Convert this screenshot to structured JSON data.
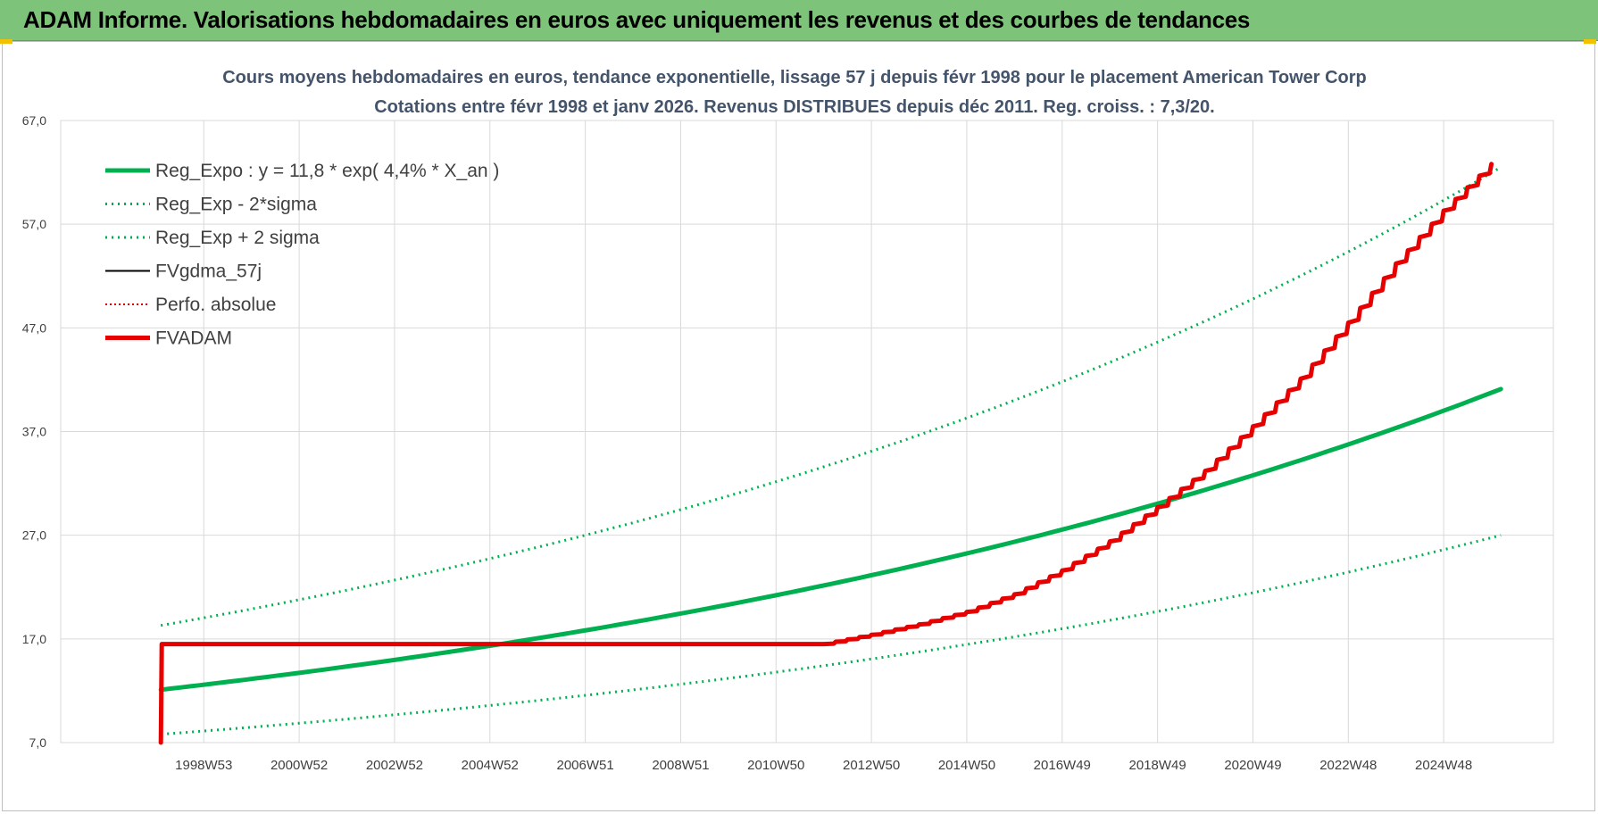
{
  "header": {
    "title": "ADAM Informe. Valorisations hebdomadaires en euros avec uniquement les revenus et des courbes de tendances"
  },
  "chart_data": {
    "type": "line",
    "title": "Cours moyens hebdomadaires en euros, tendance exponentielle, lissage 57 j depuis févr 1998 pour le placement American Tower Corp",
    "subtitle": "Cotations entre févr 1998 et janv 2026. Revenus DISTRIBUES depuis déc 2011. Reg. croiss. : 7,3/20.",
    "xlabel": "",
    "ylabel": "",
    "ylim": [
      7,
      67
    ],
    "xlim": [
      1996.0,
      2027.3
    ],
    "yticks": [
      "7,0",
      "17,0",
      "27,0",
      "37,0",
      "47,0",
      "57,0",
      "67,0"
    ],
    "xticks": [
      "1998W53",
      "2000W52",
      "2002W52",
      "2004W52",
      "2006W51",
      "2008W51",
      "2010W50",
      "2012W50",
      "2014W50",
      "2016W49",
      "2018W49",
      "2020W49",
      "2022W48",
      "2024W48"
    ],
    "xtick_years": [
      1999,
      2001,
      2003,
      2005,
      2007,
      2009,
      2011,
      2013,
      2015,
      2017,
      2019,
      2021,
      2023,
      2025
    ],
    "grid": true,
    "legend_position": "top-left",
    "colors": {
      "green": "#00b050",
      "red": "#e60000",
      "black": "#000000"
    },
    "series": [
      {
        "name": "Reg_Expo : y = 11,8 * exp( 4,4% *  X_an )",
        "style": "solid-thick",
        "color": "#00b050",
        "x": [
          1998.1,
          2002,
          2006,
          2010,
          2014,
          2018,
          2022,
          2026.2
        ],
        "y": [
          12.1,
          14.3,
          17.1,
          20.5,
          24.6,
          29.4,
          35.3,
          41.1
        ]
      },
      {
        "name": "Reg_Exp - 2*sigma",
        "style": "dotted",
        "color": "#00b050",
        "x": [
          1998.1,
          2002,
          2006,
          2010,
          2014,
          2018,
          2022,
          2026.2
        ],
        "y": [
          7.8,
          9.2,
          11.1,
          13.2,
          15.9,
          19.0,
          22.8,
          27.0
        ]
      },
      {
        "name": "Reg_Exp + 2 sigma",
        "style": "dotted",
        "color": "#00b050",
        "x": [
          1998.1,
          2002,
          2006,
          2010,
          2014,
          2018,
          2022,
          2026.2
        ],
        "y": [
          18.3,
          21.8,
          26.1,
          31.3,
          37.6,
          45.0,
          53.9,
          62.5
        ]
      },
      {
        "name": "FVgdma_57j",
        "style": "solid-thin",
        "color": "#000000",
        "x": [
          1998.1,
          1998.12,
          2012.0,
          2013,
          2014,
          2015,
          2016,
          2017,
          2018,
          2019,
          2020,
          2021,
          2022,
          2023,
          2024,
          2025,
          2026.2
        ],
        "y": [
          7.0,
          16.5,
          16.5,
          17.4,
          18.4,
          19.6,
          21.3,
          23.6,
          26.4,
          29.7,
          33.2,
          37.5,
          42.1,
          47.5,
          53.2,
          58.3,
          63.7
        ]
      },
      {
        "name": "Perfo. absolue",
        "style": "dotted-thin",
        "color": "#e60000",
        "x": [
          1998.1,
          1998.12,
          2012.0,
          2013,
          2014,
          2015,
          2016,
          2017,
          2018,
          2019,
          2020,
          2021,
          2022,
          2023,
          2024,
          2025,
          2026.2
        ],
        "y": [
          7.0,
          16.5,
          16.5,
          17.4,
          18.4,
          19.6,
          21.3,
          23.6,
          26.4,
          29.7,
          33.2,
          37.5,
          42.1,
          47.5,
          53.2,
          58.3,
          63.7
        ]
      },
      {
        "name": "FVADAM",
        "style": "solid-thick",
        "color": "#e60000",
        "x": [
          1998.1,
          1998.12,
          2012.0,
          2013,
          2014,
          2015,
          2016,
          2017,
          2018,
          2019,
          2020,
          2021,
          2022,
          2023,
          2024,
          2025,
          2026.2
        ],
        "y": [
          7.0,
          16.5,
          16.5,
          17.4,
          18.4,
          19.6,
          21.3,
          23.6,
          26.4,
          29.7,
          33.2,
          37.5,
          42.1,
          47.5,
          53.2,
          58.3,
          63.7
        ]
      }
    ]
  }
}
